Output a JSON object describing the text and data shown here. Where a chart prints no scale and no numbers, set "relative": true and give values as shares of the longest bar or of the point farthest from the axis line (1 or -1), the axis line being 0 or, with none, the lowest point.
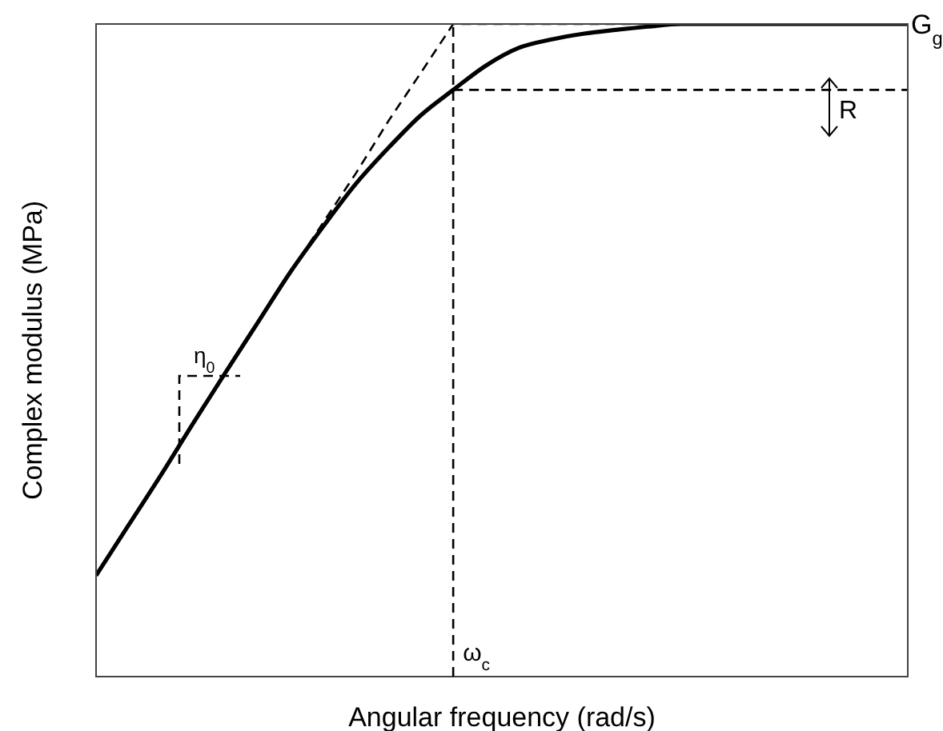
{
  "chart_data": {
    "type": "line",
    "relative": true,
    "xlabel": "Angular frequency (rad/s)",
    "ylabel": "Complex modulus (MPa)",
    "categories": [
      null,
      null,
      null,
      null,
      null,
      null,
      null,
      null,
      null,
      null,
      null,
      null,
      null,
      null,
      null,
      null,
      null,
      null,
      null,
      null,
      null,
      null,
      null,
      null,
      null,
      null
    ],
    "series": [
      {
        "color": "#000000",
        "line_style": "solid",
        "values": [
          0.155,
          0.232,
          0.309,
          0.389,
          0.467,
          0.544,
          0.621,
          0.69,
          0.755,
          0.81,
          0.86,
          0.899,
          0.936,
          0.963,
          0.976,
          0.985,
          0.991,
          0.996,
          1,
          1,
          1,
          1,
          1,
          1,
          1,
          1
        ]
      },
      {
        "color": "#000000",
        "line_style": "dashed",
        "values": [
          null,
          null,
          null,
          null,
          null,
          null,
          0.621,
          0.696,
          0.771,
          0.851,
          0.925,
          1,
          1,
          1,
          1,
          1,
          1,
          1,
          1,
          1,
          1,
          1,
          1,
          1,
          1,
          1
        ]
      },
      {
        "color": "#000000",
        "line_style": "dashed",
        "values": [
          null,
          null,
          null,
          null,
          null,
          null,
          null,
          null,
          null,
          null,
          null,
          0.899,
          0.899,
          0.899,
          0.899,
          0.899,
          0.899,
          0.899,
          0.899,
          0.899,
          0.899,
          0.899,
          0.899,
          0.899,
          0.899,
          0.899
        ]
      }
    ],
    "annotations": [
      "η$_{0}$",
      "R",
      "G$_{g}$",
      "ω$_{c}$"
    ]
  }
}
